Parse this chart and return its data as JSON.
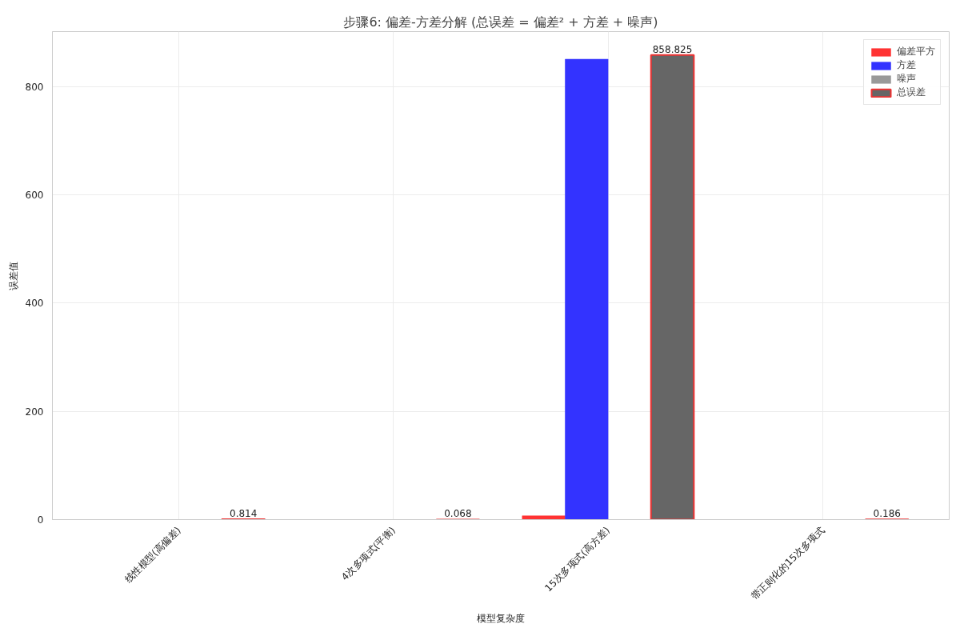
{
  "chart_data": {
    "type": "bar",
    "title": "步骤6: 偏差-方差分解 (总误差 = 偏差² + 方差 + 噪声)",
    "xlabel": "模型复杂度",
    "ylabel": "误差值",
    "categories": [
      "线性模型(高偏差)",
      "4次多项式(平衡)",
      "15次多项式(高方差)",
      "带正则化的15次多项式"
    ],
    "series": [
      {
        "name": "偏差平方",
        "color": "#ff3333",
        "values": [
          0,
          0,
          7,
          0
        ]
      },
      {
        "name": "方差",
        "color": "#3333ff",
        "values": [
          0,
          0,
          851,
          0
        ]
      },
      {
        "name": "噪声",
        "color": "#999999",
        "values": [
          0,
          0,
          0,
          0
        ]
      },
      {
        "name": "总误差",
        "color": "#666666",
        "values": [
          0.814,
          0.068,
          858.825,
          0.186
        ],
        "value_labels": [
          "0.814",
          "0.068",
          "858.825",
          "0.186"
        ]
      }
    ],
    "ylim": [
      0,
      902
    ],
    "yticks": [
      0,
      200,
      400,
      600,
      800
    ],
    "grid": true,
    "legend": "top right"
  }
}
